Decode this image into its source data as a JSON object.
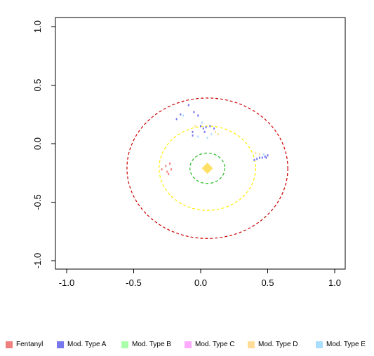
{
  "chart_data": {
    "type": "scatter",
    "xlim": [
      -1.1,
      1.1
    ],
    "ylim": [
      -1.1,
      1.1
    ],
    "x_ticks": [
      -1.0,
      -0.5,
      0.0,
      0.5,
      1.0
    ],
    "y_ticks": [
      -1.0,
      -0.5,
      0.0,
      0.5,
      1.0
    ],
    "x_tick_labels": [
      "-1.0",
      "-0.5",
      "0.0",
      "0.5",
      "1.0"
    ],
    "y_tick_labels": [
      "-1.0",
      "-0.5",
      "0.0",
      "0.5",
      "1.0"
    ],
    "grid": false,
    "legend_position": "bottom",
    "centroid": {
      "x": 0.05,
      "y": -0.21,
      "color": "#FFE066",
      "shape": "diamond"
    },
    "rings": [
      {
        "radius": 0.6,
        "color": "#CC0000"
      },
      {
        "radius": 0.36,
        "color": "#FFEE00"
      },
      {
        "radius": 0.13,
        "color": "#22BB22"
      }
    ],
    "series": [
      {
        "name": "Fentanyl",
        "color": "#F08080",
        "points": [
          [
            -0.29,
            -0.22
          ],
          [
            -0.26,
            -0.19
          ],
          [
            -0.25,
            -0.24
          ],
          [
            -0.23,
            -0.17
          ],
          [
            -0.22,
            -0.22
          ],
          [
            -0.24,
            -0.26
          ]
        ]
      },
      {
        "name": "Mod. Type A",
        "color": "#7777EE",
        "points": [
          [
            -0.18,
            0.21
          ],
          [
            -0.15,
            0.25
          ],
          [
            -0.09,
            0.33
          ],
          [
            -0.05,
            0.27
          ],
          [
            -0.02,
            0.24
          ],
          [
            0.0,
            0.15
          ],
          [
            0.02,
            0.13
          ],
          [
            0.04,
            0.14
          ],
          [
            0.07,
            0.15
          ],
          [
            0.03,
            0.1
          ],
          [
            -0.06,
            0.1
          ],
          [
            0.4,
            -0.14
          ],
          [
            0.42,
            -0.13
          ],
          [
            0.44,
            -0.12
          ],
          [
            0.46,
            -0.12
          ],
          [
            0.48,
            -0.11
          ],
          [
            0.49,
            -0.12
          ],
          [
            0.5,
            -0.1
          ],
          [
            -0.06,
            0.07
          ],
          [
            0.1,
            0.13
          ]
        ]
      },
      {
        "name": "Mod. Type B",
        "color": "#AAFFAA",
        "points": []
      },
      {
        "name": "Mod. Type C",
        "color": "#FFAAFF",
        "points": []
      },
      {
        "name": "Mod. Type D",
        "color": "#FFDD99",
        "points": [
          [
            0.11,
            0.1
          ],
          [
            0.13,
            0.08
          ],
          [
            -0.04,
            0.15
          ],
          [
            0.41,
            -0.08
          ],
          [
            0.44,
            -0.09
          ]
        ]
      },
      {
        "name": "Mod. Type E",
        "color": "#AADDFF",
        "points": [
          [
            0.08,
            0.08
          ],
          [
            -0.02,
            0.06
          ],
          [
            0.05,
            0.05
          ],
          [
            0.01,
            0.18
          ],
          [
            0.47,
            -0.09
          ],
          [
            -0.13,
            0.24
          ]
        ]
      }
    ]
  }
}
